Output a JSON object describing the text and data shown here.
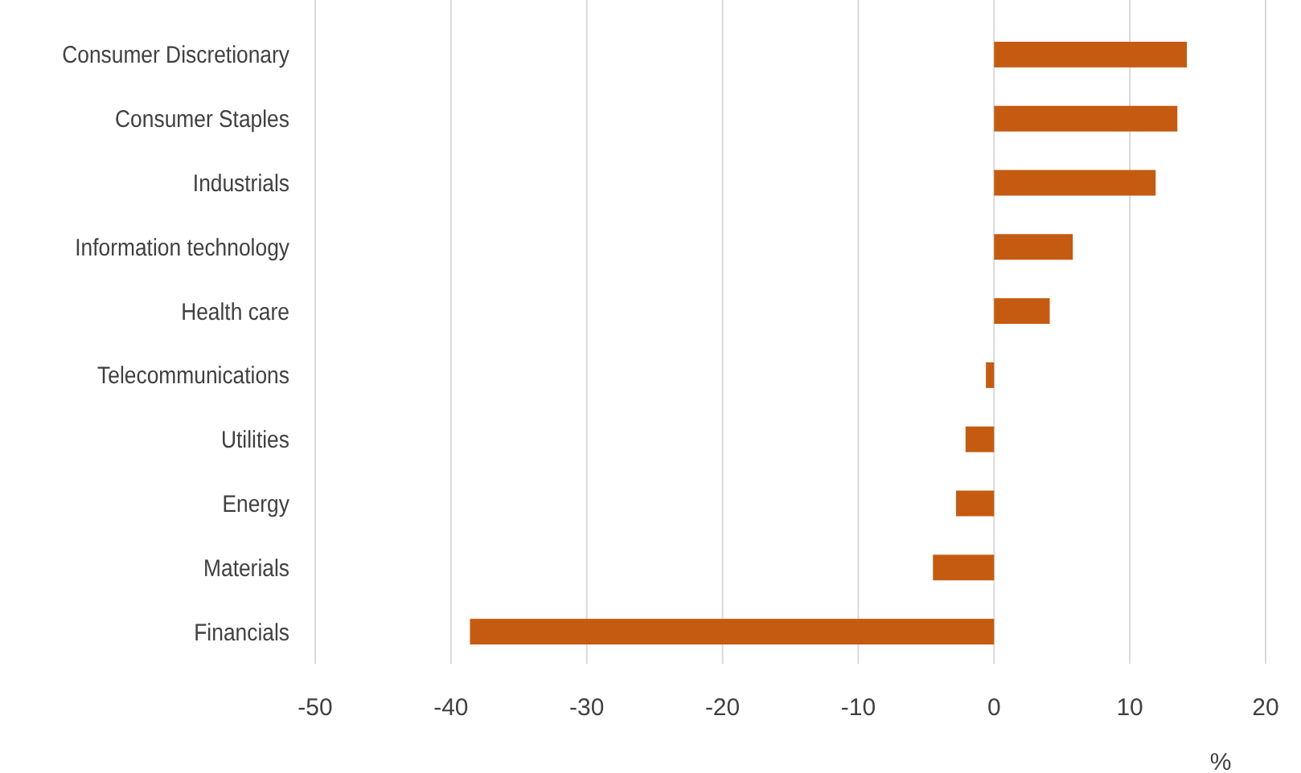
{
  "chart_data": {
    "type": "bar",
    "orientation": "horizontal",
    "xlabel": "%",
    "categories": [
      "Consumer Discretionary",
      "Consumer Staples",
      "Industrials",
      "Information technology",
      "Health care",
      "Telecommunications",
      "Utilities",
      "Energy",
      "Materials",
      "Financials"
    ],
    "series": [
      {
        "color": "#c55a11",
        "values": [
          14.2,
          13.5,
          11.9,
          5.8,
          4.1,
          -0.6,
          -2.1,
          -2.8,
          -4.5,
          -38.6
        ]
      }
    ],
    "xlim": [
      -50,
      20
    ],
    "xticks": [
      -50,
      -40,
      -30,
      -20,
      -10,
      0,
      10,
      20
    ],
    "grid": "x"
  }
}
